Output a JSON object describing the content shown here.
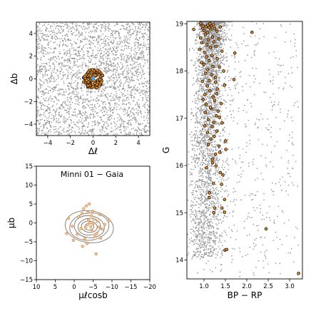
{
  "chart_data": [
    {
      "type": "scatter",
      "xlabel": "Δℓ",
      "ylabel": "Δb",
      "xlim": [
        -5,
        5
      ],
      "ylim": [
        -5,
        5
      ],
      "xticks": [
        "−4",
        "−2",
        "0",
        "2",
        "4"
      ],
      "yticks": [
        "4",
        "2",
        "0",
        "−2",
        "−4"
      ],
      "series": [
        {
          "role": "field-stars",
          "color": "#999999",
          "distribution": "uniform",
          "count": 2600
        },
        {
          "role": "cluster-members",
          "color": "#e08a2c",
          "edge": "#000000",
          "center": [
            0,
            0
          ],
          "radius": 0.9,
          "count": 110
        },
        {
          "role": "center",
          "color": "#4aa3df",
          "x": [
            0
          ],
          "y": [
            0
          ]
        }
      ]
    },
    {
      "type": "scatter",
      "title": "Minni 01  −  Gaia",
      "xlabel": "μℓcosb",
      "ylabel": "μb",
      "xlim": [
        10,
        -20
      ],
      "ylim": [
        -15,
        15
      ],
      "xticks": [
        "10",
        "5",
        "0",
        "−5",
        "−10",
        "−15",
        "−20"
      ],
      "yticks": [
        "15",
        "10",
        "5",
        "0",
        "−5",
        "−10",
        "−15"
      ],
      "contour_center": [
        -4,
        -1
      ],
      "contour_levels_radius": [
        [
          1.2,
          0.9
        ],
        [
          2.1,
          1.5
        ],
        [
          3.0,
          2.2
        ],
        [
          4.0,
          2.9
        ],
        [
          5.2,
          3.6
        ],
        [
          6.4,
          4.2
        ]
      ],
      "series": [
        {
          "role": "pm-members",
          "color": "#f0c49a",
          "edge": "#c0773a",
          "x": [
            -2.1,
            -3.5,
            -5.2,
            -4.8,
            -6.1,
            -3.0,
            -2.5,
            -7.4,
            -1.2,
            0.5,
            2.0,
            -4.0,
            -5.5,
            -3.8,
            -6.8,
            -8.1,
            -2.8,
            -4.4,
            -3.2,
            -5.0,
            -1.8,
            -6.0,
            -4.6,
            -3.4,
            1.5,
            -9.2,
            -0.8,
            -7.0,
            -5.8,
            -2.2,
            -4.9,
            -3.6,
            0.2,
            -6.5,
            -4.1
          ],
          "y": [
            2.5,
            -0.5,
            1.0,
            -2.2,
            0.4,
            -1.3,
            3.8,
            -1.6,
            1.6,
            -0.9,
            -2.8,
            5.0,
            -3.5,
            0.8,
            2.2,
            -0.4,
            -4.2,
            -1.0,
            4.5,
            -0.2,
            -1.5,
            -2.8,
            1.9,
            -5.5,
            1.2,
            0.6,
            -3.0,
            -4.0,
            -8.2,
            -6.2,
            3.1,
            2.8,
            -4.6,
            -1.1,
            0.0
          ]
        }
      ]
    },
    {
      "type": "scatter",
      "xlabel": "BP − RP",
      "ylabel": "G",
      "xlim": [
        0.6,
        3.3
      ],
      "ylim": [
        19.05,
        13.6
      ],
      "xticks": [
        "1.0",
        "1.5",
        "2.0",
        "2.5",
        "3.0"
      ],
      "yticks": [
        "14",
        "15",
        "16",
        "17",
        "18",
        "19"
      ],
      "series": [
        {
          "role": "field-cmd",
          "color": "#999999",
          "count": 3600
        },
        {
          "role": "cluster-cmd",
          "color": "#e08a2c",
          "edge": "#000000",
          "x": [
            3.21,
            1.49,
            1.53,
            2.45,
            1.23,
            1.48,
            1.42,
            1.25,
            1.48,
            1.12,
            1.13,
            1.22,
            1.41,
            1.44,
            1.38,
            1.06,
            1.28,
            1.2,
            1.2,
            1.27,
            1.37,
            1.51,
            1.35,
            1.1,
            1.5,
            1.16,
            1.24,
            1.08,
            1.3,
            1.19,
            1.02,
            1.42,
            1.23,
            1.1,
            1.36,
            1.29,
            1.03,
            1.33,
            1.17,
            1.15,
            1.05,
            1.4,
            1.25,
            0.98,
            1.21,
            1.02,
            1.3,
            1.14,
            1.31,
            1.08,
            1.48,
            1.27,
            0.96,
            1.12,
            1.7,
            1.27,
            1.18,
            1.04,
            1.46,
            1.08,
            1.36,
            1.21,
            1.0,
            0.94,
            1.12,
            1.31,
            1.06,
            1.19,
            1.72,
            1.01,
            1.42,
            0.9,
            1.15,
            1.28,
            1.07,
            0.95,
            1.23,
            1.1,
            1.35,
            0.92,
            1.2,
            1.03,
            2.12,
            1.08,
            1.3,
            1.0,
            1.16,
            0.97,
            1.25,
            1.12,
            1.38,
            1.05,
            0.98,
            1.18,
            1.09,
            0.93,
            1.22,
            0.76,
            1.14,
            0.92
          ],
          "y": [
            13.72,
            14.21,
            14.22,
            14.66,
            15.0,
            15.01,
            15.1,
            15.1,
            15.28,
            15.32,
            15.42,
            15.62,
            15.6,
            15.8,
            15.85,
            15.95,
            15.99,
            16.06,
            16.13,
            16.24,
            16.28,
            16.34,
            16.41,
            16.44,
            16.52,
            16.56,
            16.62,
            16.7,
            16.73,
            16.83,
            16.84,
            16.9,
            16.92,
            16.97,
            17.02,
            17.05,
            17.12,
            17.15,
            17.2,
            17.23,
            17.3,
            17.31,
            17.38,
            17.4,
            17.45,
            17.5,
            17.52,
            17.58,
            17.62,
            17.68,
            17.7,
            17.76,
            17.78,
            17.8,
            17.82,
            17.86,
            17.92,
            17.95,
            18.0,
            18.03,
            18.08,
            18.1,
            18.14,
            18.18,
            18.22,
            18.26,
            18.3,
            18.33,
            18.38,
            18.4,
            18.42,
            18.46,
            18.5,
            18.52,
            18.56,
            18.6,
            18.62,
            18.66,
            18.68,
            18.7,
            18.72,
            18.78,
            18.82,
            18.82,
            18.84,
            18.86,
            18.88,
            18.9,
            18.9,
            18.92,
            18.93,
            18.94,
            18.95,
            18.96,
            18.97,
            18.98,
            18.98,
            18.88,
            19.0,
            19.01
          ]
        }
      ]
    }
  ]
}
